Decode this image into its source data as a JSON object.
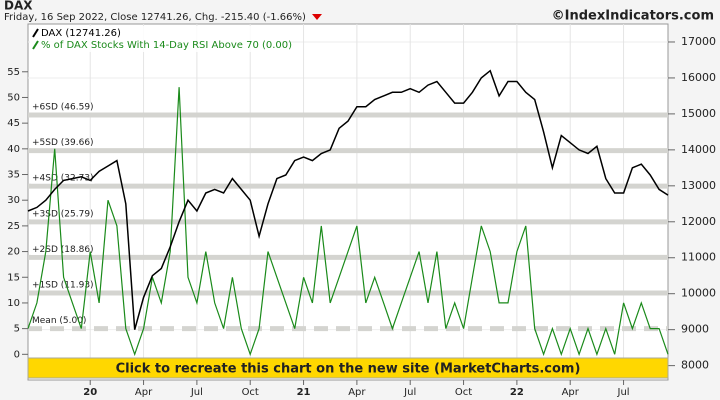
{
  "chart_data": {
    "type": "line",
    "title": "DAX",
    "subtitle": "Friday, 16 Sep 2022, Close 12741.26, Chg. -215.40 (-1.66%)",
    "watermark": "©IndexIndicators.com",
    "banner": "Click to recreate this chart on the new site (MarketCharts.com)",
    "categories": [
      null,
      null,
      null,
      null,
      null,
      null,
      null,
      "20",
      null,
      null,
      null,
      null,
      null,
      "Apr",
      null,
      null,
      null,
      null,
      null,
      "Jul",
      null,
      null,
      null,
      null,
      null,
      "Oct",
      null,
      null,
      null,
      null,
      null,
      "21",
      null,
      null,
      null,
      null,
      null,
      "Apr",
      null,
      null,
      null,
      null,
      null,
      "Jul",
      null,
      null,
      null,
      null,
      null,
      "Oct",
      null,
      null,
      null,
      null,
      null,
      "22",
      null,
      null,
      null,
      null,
      null,
      "Apr",
      null,
      null,
      null,
      null,
      null,
      "Jul",
      null,
      null,
      null,
      null,
      null
    ],
    "series": [
      {
        "name": "DAX (12741.26)",
        "color": "#000000",
        "axis": "y2",
        "values": [
          12300,
          12400,
          12600,
          12900,
          13150,
          13200,
          13250,
          13150,
          13400,
          13550,
          13700,
          12500,
          9000,
          9900,
          10500,
          10700,
          11300,
          12000,
          12600,
          12300,
          12800,
          12900,
          12800,
          13200,
          12900,
          12600,
          11600,
          12500,
          13200,
          13300,
          13700,
          13800,
          13700,
          13900,
          14000,
          14600,
          14800,
          15200,
          15200,
          15400,
          15500,
          15600,
          15600,
          15700,
          15600,
          15800,
          15900,
          15600,
          15300,
          15300,
          15600,
          16000,
          16200,
          15500,
          15900,
          15900,
          15600,
          15400,
          14500,
          13500,
          14400,
          14200,
          14000,
          13900,
          14100,
          13200,
          12800,
          12800,
          13500,
          13600,
          13300,
          12900,
          12741.26
        ]
      },
      {
        "name": "% of DAX Stocks With 14-Day RSI Above 70 (0.00)",
        "color": "#1a8a1a",
        "axis": "y",
        "values": [
          5,
          10,
          20,
          40,
          15,
          10,
          5,
          20,
          10,
          30,
          25,
          5,
          0,
          5,
          15,
          10,
          20,
          52,
          15,
          10,
          20,
          10,
          5,
          15,
          5,
          0,
          5,
          20,
          15,
          10,
          5,
          15,
          10,
          25,
          10,
          15,
          20,
          25,
          10,
          15,
          10,
          5,
          10,
          15,
          20,
          10,
          20,
          5,
          10,
          5,
          15,
          25,
          20,
          10,
          10,
          20,
          25,
          5,
          0,
          5,
          0,
          5,
          0,
          5,
          0,
          5,
          0,
          10,
          5,
          10,
          5,
          5,
          0
        ]
      }
    ],
    "reference_lines": [
      {
        "label": "+6SD (46.59)",
        "value": 46.59
      },
      {
        "label": "+5SD (39.66)",
        "value": 39.66
      },
      {
        "label": "+4SD (32.73)",
        "value": 32.73
      },
      {
        "label": "+3SD (25.79)",
        "value": 25.79
      },
      {
        "label": "+2SD (18.86)",
        "value": 18.86
      },
      {
        "label": "+1SD (11.93)",
        "value": 11.93
      },
      {
        "label": "Mean (5.00)",
        "value": 5
      }
    ],
    "ylim": [
      -5,
      64.3
    ],
    "yticks": [
      0,
      5,
      10,
      15,
      20,
      25,
      30,
      35,
      40,
      45,
      50,
      55
    ],
    "y2lim": [
      7600,
      17500
    ],
    "y2ticks": [
      8000,
      9000,
      10000,
      11000,
      12000,
      13000,
      14000,
      15000,
      16000,
      17000
    ],
    "grid": true,
    "legend": "top-left"
  }
}
